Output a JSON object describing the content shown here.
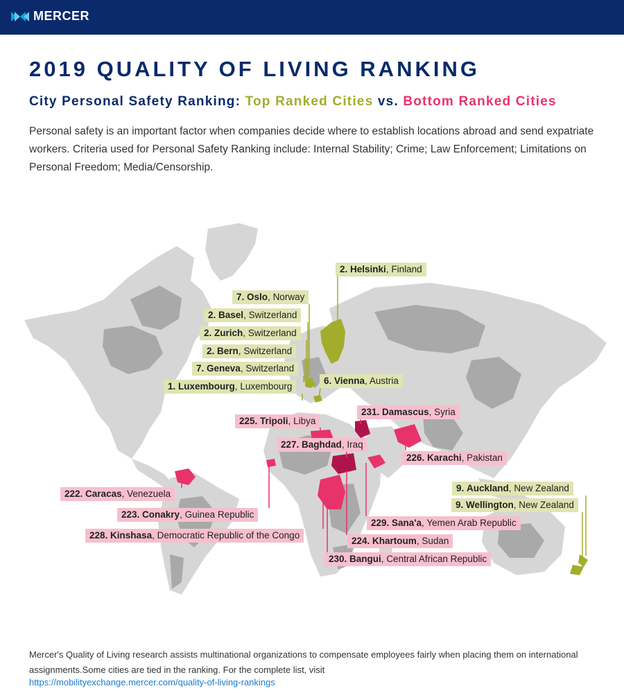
{
  "header": {
    "brand": "MERCER"
  },
  "title": "2019 QUALITY OF LIVING RANKING",
  "subtitle": {
    "prefix": "City Personal Safety Ranking:",
    "top": "Top Ranked Cities",
    "vs": "vs.",
    "bottom": "Bottom Ranked Cities"
  },
  "intro": "Personal safety is an important factor when companies decide where to establish locations abroad and send expatriate workers. Criteria used for Personal Safety Ranking include: Internal Stability; Crime; Law Enforcement; Limitations on Personal Freedom; Media/Censorship.",
  "colors": {
    "brand_navy": "#0a2a6b",
    "top_ranked": "#a2ad2c",
    "bottom_ranked": "#e8336a",
    "top_label_bg": "#dfe4b2",
    "bottom_label_bg": "#f7bfce"
  },
  "top_cities": [
    {
      "rank": "2.",
      "city": "Helsinki",
      "country": "Finland"
    },
    {
      "rank": "7.",
      "city": "Oslo",
      "country": "Norway"
    },
    {
      "rank": "2.",
      "city": "Basel",
      "country": "Switzerland"
    },
    {
      "rank": "2.",
      "city": "Zurich",
      "country": "Switzerland"
    },
    {
      "rank": "2.",
      "city": "Bern",
      "country": "Switzerland"
    },
    {
      "rank": "7.",
      "city": "Geneva",
      "country": "Switzerland"
    },
    {
      "rank": "1.",
      "city": "Luxembourg",
      "country": "Luxembourg"
    },
    {
      "rank": "6.",
      "city": "Vienna",
      "country": "Austria"
    },
    {
      "rank": "9.",
      "city": "Auckland",
      "country": "New Zealand"
    },
    {
      "rank": "9.",
      "city": "Wellington",
      "country": "New Zealand"
    }
  ],
  "bottom_cities": [
    {
      "rank": "231.",
      "city": "Damascus",
      "country": "Syria"
    },
    {
      "rank": "225.",
      "city": "Tripoli",
      "country": "Libya"
    },
    {
      "rank": "227.",
      "city": "Baghdad",
      "country": "Iraq"
    },
    {
      "rank": "226.",
      "city": "Karachi",
      "country": "Pakistan"
    },
    {
      "rank": "222.",
      "city": "Caracas",
      "country": "Venezuela"
    },
    {
      "rank": "223.",
      "city": "Conakry",
      "country": "Guinea Republic"
    },
    {
      "rank": "228.",
      "city": "Kinshasa",
      "country": "Democratic Republic of the Congo"
    },
    {
      "rank": "229.",
      "city": "Sana'a",
      "country": "Yemen Arab Republic"
    },
    {
      "rank": "224.",
      "city": "Khartoum",
      "country": "Sudan"
    },
    {
      "rank": "230.",
      "city": "Bangui",
      "country": "Central African Republic"
    }
  ],
  "footer": {
    "text": "Mercer's Quality of Living research assists multinational organizations to compensate employees fairly when placing them on international assignments.Some cities are tied in the ranking. For the complete list, visit",
    "link": "https://mobilityexchange.mercer.com/quality-of-living-rankings"
  }
}
